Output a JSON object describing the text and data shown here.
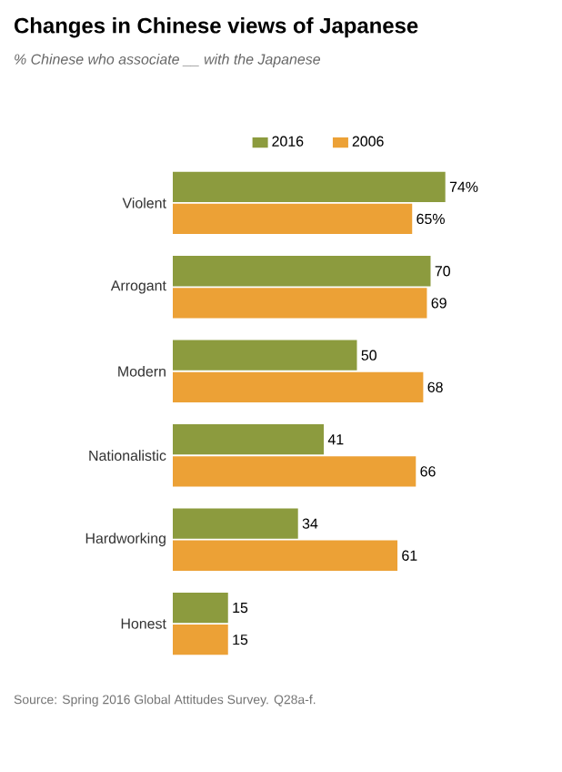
{
  "chart_data": {
    "type": "bar",
    "orientation": "horizontal",
    "title": "Changes  in Chinese views of Japanese",
    "subtitle": "% Chinese who associate __ with the Japanese",
    "categories": [
      "Violent",
      "Arrogant",
      "Modern",
      "Nationalistic",
      "Hardworking",
      "Honest"
    ],
    "series": [
      {
        "name": "2016",
        "color": "#8c9b3e",
        "values": [
          74,
          70,
          50,
          41,
          34,
          15
        ],
        "value_labels": [
          "74%",
          "70",
          "50",
          "41",
          "34",
          "15"
        ]
      },
      {
        "name": "2006",
        "color": "#eca136",
        "values": [
          65,
          69,
          68,
          66,
          61,
          15
        ],
        "value_labels": [
          "65%",
          "69",
          "68",
          "66",
          "61",
          "15"
        ]
      }
    ],
    "relative": false,
    "legend": "top",
    "annotations": [
      "Source: Spring 2016 Global Attitudes Survey. Q28a-f."
    ]
  }
}
